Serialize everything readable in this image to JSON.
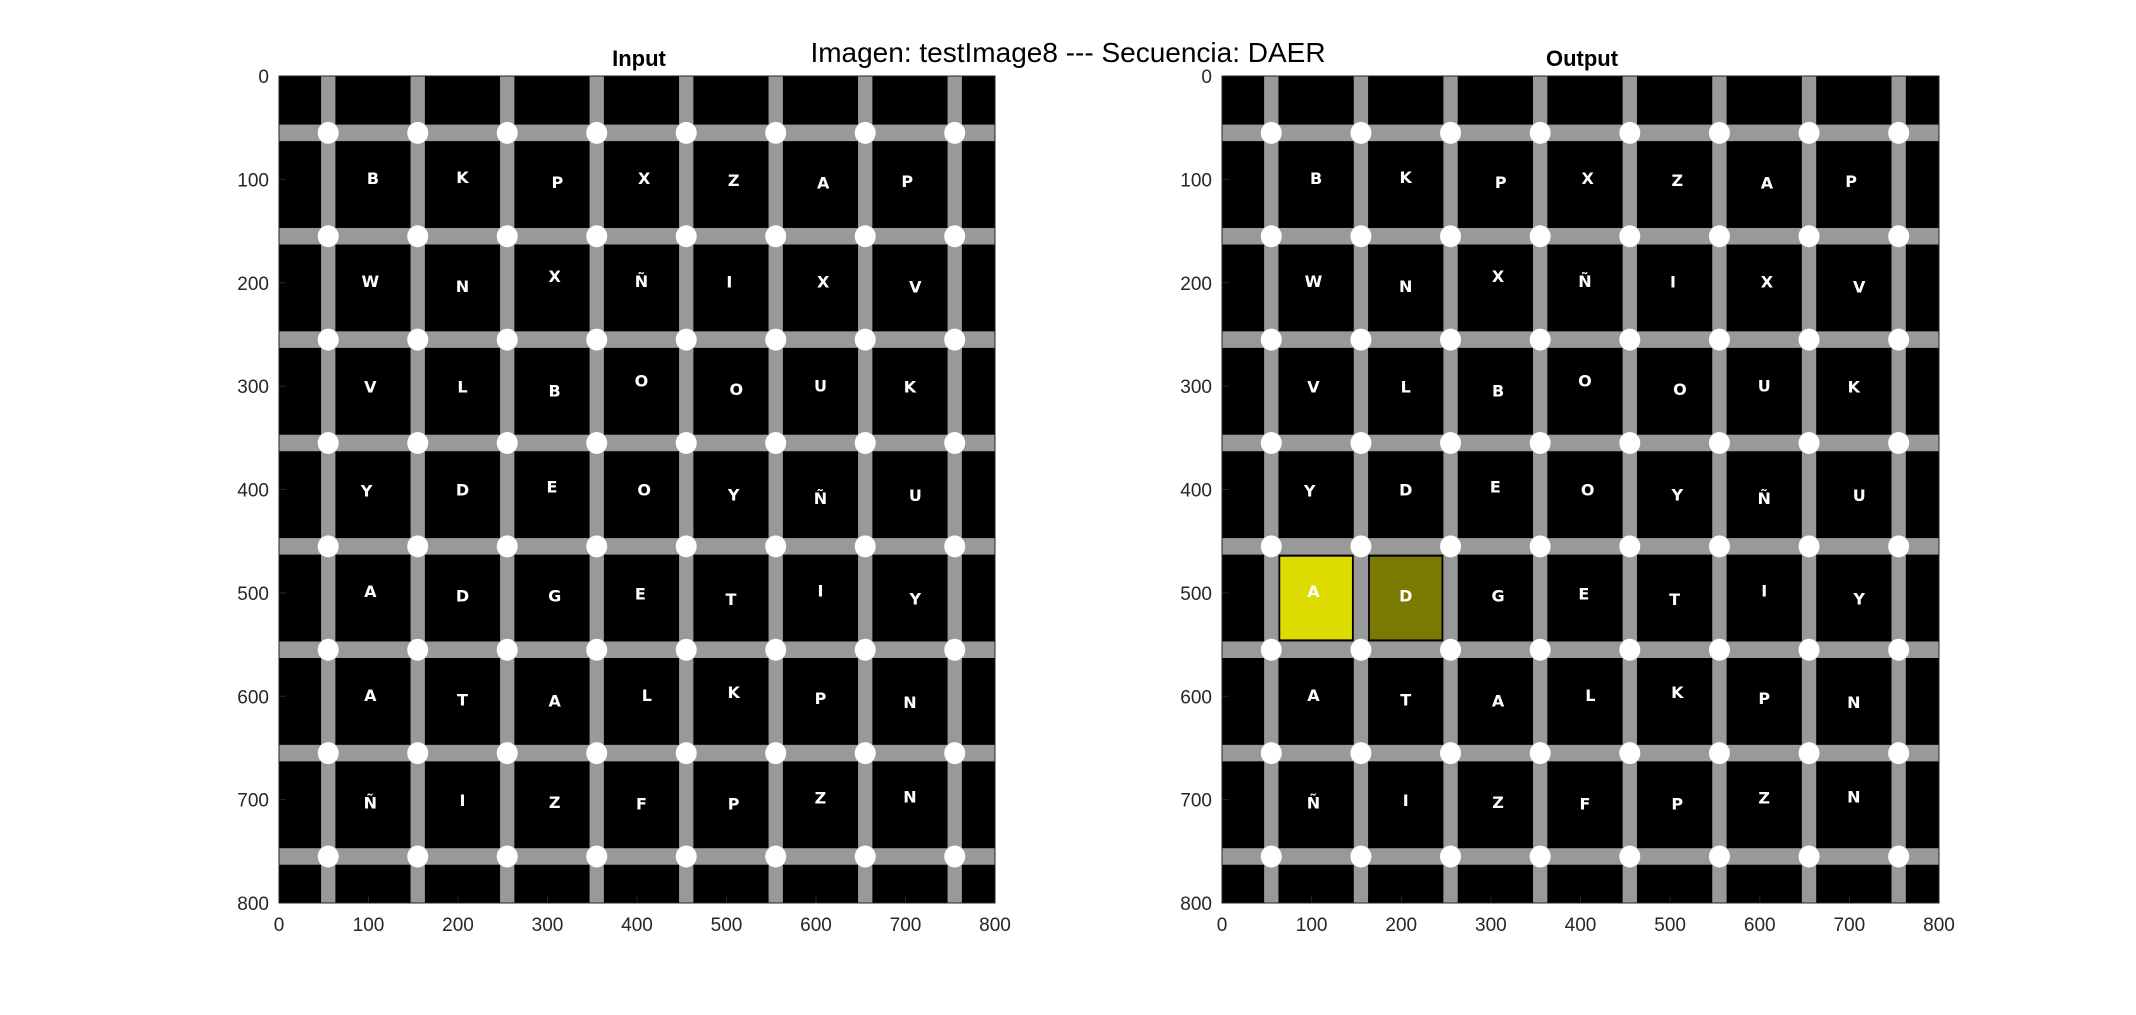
{
  "figure": {
    "title": "Imagen: testImage8 --- Secuencia: DAER"
  },
  "panels": [
    {
      "name": "input",
      "title": "Input",
      "highlights": []
    },
    {
      "name": "output",
      "title": "Output",
      "highlights": [
        {
          "row": 4,
          "col": 0,
          "color": "#dcdc00"
        },
        {
          "row": 4,
          "col": 1,
          "color": "#7a7a00"
        }
      ]
    }
  ],
  "axes": {
    "x_range": [
      0,
      800
    ],
    "y_range": [
      0,
      800
    ],
    "x_ticks": [
      "0",
      "100",
      "200",
      "300",
      "400",
      "500",
      "600",
      "700",
      "800"
    ],
    "y_ticks": [
      "0",
      "100",
      "200",
      "300",
      "400",
      "500",
      "600",
      "700",
      "800"
    ],
    "y_reversed": true
  },
  "grid": {
    "rows": [
      [
        "B",
        "K",
        "P",
        "X",
        "Z",
        "A",
        "P"
      ],
      [
        "W",
        "N",
        "X",
        "Ñ",
        "I",
        "X",
        "V"
      ],
      [
        "V",
        "L",
        "B",
        "O",
        "O",
        "U",
        "K"
      ],
      [
        "Y",
        "D",
        "E",
        "O",
        "Y",
        "Ñ",
        "U"
      ],
      [
        "A",
        "D",
        "G",
        "E",
        "T",
        "I",
        "Y"
      ],
      [
        "A",
        "T",
        "A",
        "L",
        "K",
        "P",
        "N"
      ],
      [
        "Ñ",
        "I",
        "Z",
        "F",
        "P",
        "Z",
        "N"
      ]
    ]
  },
  "colors": {
    "background": "#000000",
    "grid_lines": "#999999",
    "nodes": "#ffffff",
    "letters": "#ffffff",
    "highlight_primary": "#dcdc00",
    "highlight_secondary": "#7a7a00"
  }
}
